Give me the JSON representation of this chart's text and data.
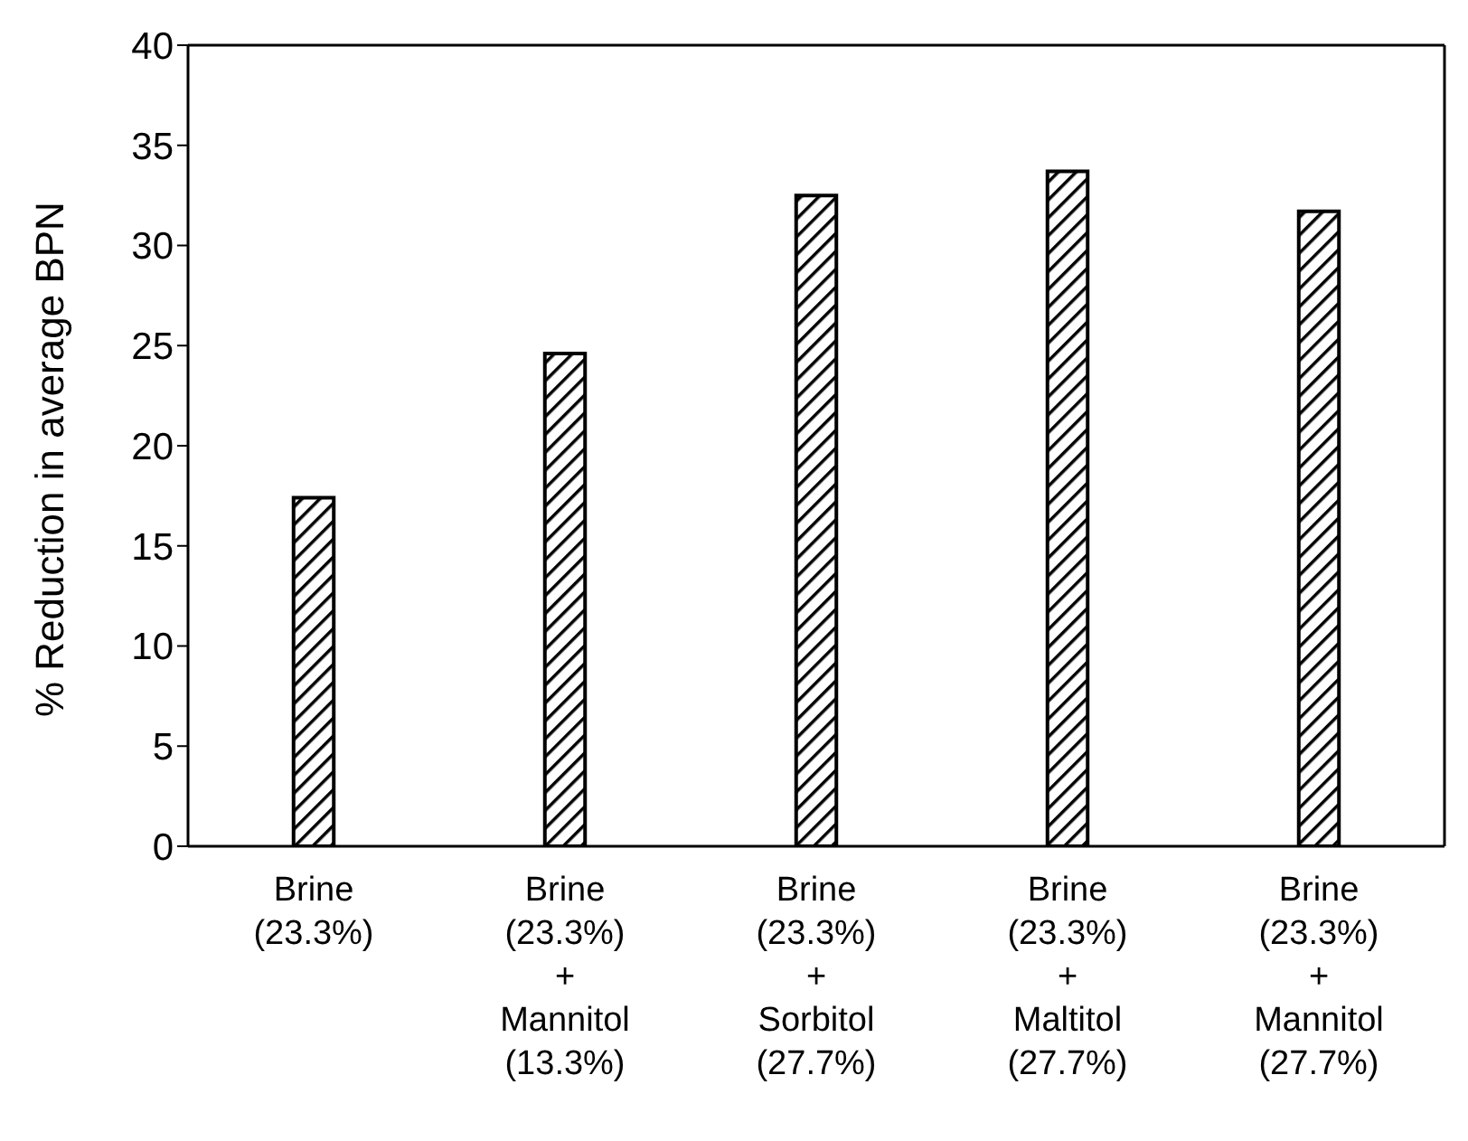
{
  "chart_data": {
    "type": "bar",
    "ylabel": "% Reduction in average BPN",
    "categories": [
      "Brine\n(23.3%)",
      "Brine\n(23.3%)\n+\nMannitol\n(13.3%)",
      "Brine\n(23.3%)\n+\nSorbitol\n(27.7%)",
      "Brine\n(23.3%)\n+\nMaltitol\n(27.7%)",
      "Brine\n(23.3%)\n+\nMannitol\n(27.7%)"
    ],
    "values": [
      17.4,
      24.6,
      32.5,
      33.7,
      31.7
    ],
    "color": "#000000",
    "ylim": [
      0,
      40
    ],
    "yticks": [
      0,
      5,
      10,
      15,
      20,
      25,
      30,
      35,
      40
    ],
    "grid": false
  }
}
